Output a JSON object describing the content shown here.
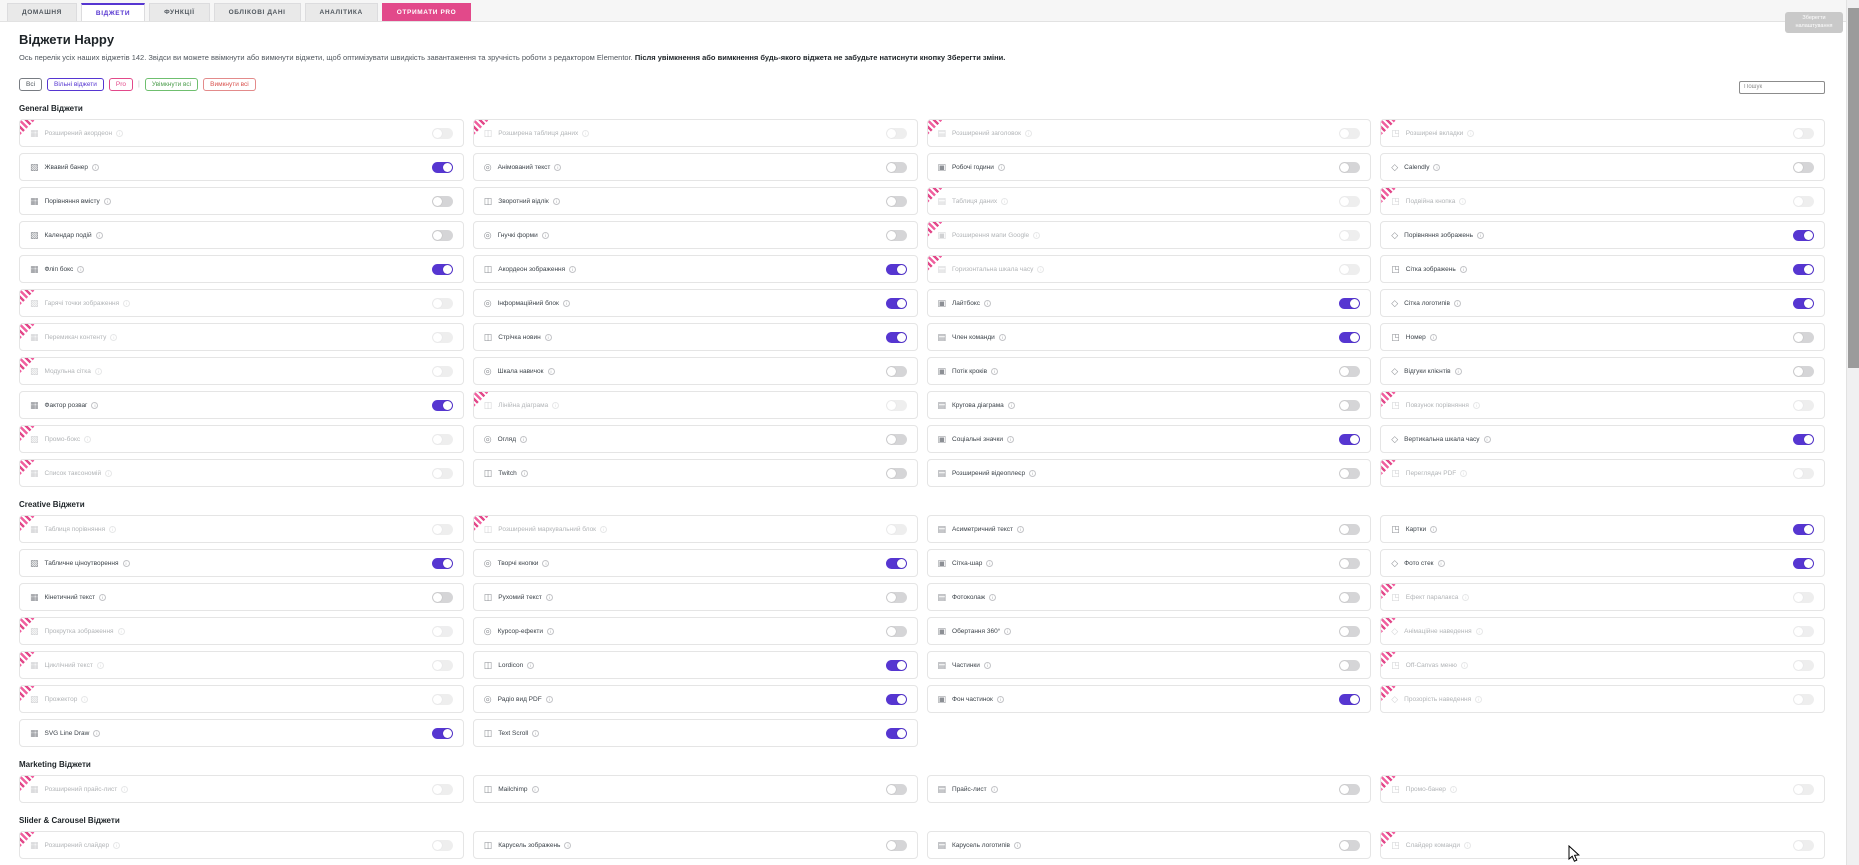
{
  "nav": {
    "tabs": [
      {
        "label": "ДОМАШНЯ",
        "active": false,
        "style": "normal"
      },
      {
        "label": "ВІДЖЕТИ",
        "active": true,
        "style": "normal"
      },
      {
        "label": "ФУНКЦІЇ",
        "active": false,
        "style": "normal"
      },
      {
        "label": "ОБЛІКОВІ ДАНІ",
        "active": false,
        "style": "normal"
      },
      {
        "label": "АНАЛІТИКА",
        "active": false,
        "style": "normal"
      },
      {
        "label": "ОТРИМАТИ PRO",
        "active": false,
        "style": "cta"
      }
    ],
    "save_button": "Зберегти налаштування"
  },
  "header": {
    "title": "Віджети Happy",
    "description_normal": "Ось перелік усіх наших віджетів 142. Звідси ви можете ввімкнути або вимкнути віджети, щоб оптимізувати швидкість завантаження та зручність роботи з редактором Elementor.",
    "description_bold": "Після увімкнення або вимкнення будь-якого віджета не забудьте натиснути кнопку Зберегти зміни."
  },
  "filters": {
    "all": "Всі",
    "free": "Вільні віджети",
    "pro": "Pro",
    "separator": "|",
    "enable_all": "Увімкнути всі",
    "disable_all": "Вимкнути всі",
    "search_placeholder": "Пошук"
  },
  "colors": {
    "accent_purple": "#5636d1",
    "accent_pink": "#e2498a",
    "toggle_off": "#d5d5d7",
    "enable_green": "#4f9e4f",
    "disable_red": "#d9534f"
  },
  "icon_glyphs": [
    "▦",
    "◫",
    "▤",
    "◳",
    "▧",
    "◎",
    "▣",
    "◇"
  ],
  "sections": [
    {
      "title": "General Віджети",
      "widgets": [
        {
          "name": "Розширений акордеон",
          "pro": true,
          "enabled": false
        },
        {
          "name": "Розширена таблиця даних",
          "pro": true,
          "enabled": false
        },
        {
          "name": "Розширений заголовок",
          "pro": true,
          "enabled": false
        },
        {
          "name": "Розширені вкладки",
          "pro": true,
          "enabled": false
        },
        {
          "name": "Жвавий банер",
          "pro": false,
          "enabled": true
        },
        {
          "name": "Анімований текст",
          "pro": false,
          "enabled": false
        },
        {
          "name": "Робочі години",
          "pro": false,
          "enabled": false
        },
        {
          "name": "Calendly",
          "pro": false,
          "enabled": false
        },
        {
          "name": "Порівняння вмісту",
          "pro": false,
          "enabled": false
        },
        {
          "name": "Зворотний відлік",
          "pro": false,
          "enabled": false
        },
        {
          "name": "Таблиця даних",
          "pro": true,
          "enabled": false
        },
        {
          "name": "Подвійна кнопка",
          "pro": true,
          "enabled": false
        },
        {
          "name": "Календар подій",
          "pro": false,
          "enabled": false
        },
        {
          "name": "Гнучкі форми",
          "pro": false,
          "enabled": false
        },
        {
          "name": "Розширення мапи Google",
          "pro": true,
          "enabled": false
        },
        {
          "name": "Порівняння зображень",
          "pro": false,
          "enabled": true
        },
        {
          "name": "Фліп бокс",
          "pro": false,
          "enabled": true
        },
        {
          "name": "Акордеон зображення",
          "pro": false,
          "enabled": true
        },
        {
          "name": "Горизонтальна шкала часу",
          "pro": true,
          "enabled": false
        },
        {
          "name": "Сітка зображень",
          "pro": false,
          "enabled": true
        },
        {
          "name": "Гарячі точки зображення",
          "pro": true,
          "enabled": false
        },
        {
          "name": "Інформаційний блок",
          "pro": false,
          "enabled": true
        },
        {
          "name": "Лайтбокс",
          "pro": false,
          "enabled": true
        },
        {
          "name": "Сітка логотипів",
          "pro": false,
          "enabled": true
        },
        {
          "name": "Перемикач контенту",
          "pro": true,
          "enabled": false
        },
        {
          "name": "Стрічка новин",
          "pro": false,
          "enabled": true
        },
        {
          "name": "Член команди",
          "pro": false,
          "enabled": true
        },
        {
          "name": "Номер",
          "pro": false,
          "enabled": false
        },
        {
          "name": "Модульна сітка",
          "pro": true,
          "enabled": false
        },
        {
          "name": "Шкала навичок",
          "pro": false,
          "enabled": false
        },
        {
          "name": "Потік кроків",
          "pro": false,
          "enabled": false
        },
        {
          "name": "Відгуки клієнтів",
          "pro": false,
          "enabled": false
        },
        {
          "name": "Фактор розваг",
          "pro": false,
          "enabled": true
        },
        {
          "name": "Лінійна діаграма",
          "pro": true,
          "enabled": false
        },
        {
          "name": "Кругова діаграма",
          "pro": false,
          "enabled": false
        },
        {
          "name": "Повзунок порівняння",
          "pro": true,
          "enabled": false
        },
        {
          "name": "Промо-бокс",
          "pro": true,
          "enabled": false
        },
        {
          "name": "Огляд",
          "pro": false,
          "enabled": false
        },
        {
          "name": "Соціальні значки",
          "pro": false,
          "enabled": true
        },
        {
          "name": "Вертикальна шкала часу",
          "pro": false,
          "enabled": true
        },
        {
          "name": "Список таксономій",
          "pro": true,
          "enabled": false
        },
        {
          "name": "Twitch",
          "pro": false,
          "enabled": false
        },
        {
          "name": "Розширений відеоплеєр",
          "pro": false,
          "enabled": false
        },
        {
          "name": "Переглядач PDF",
          "pro": true,
          "enabled": false
        }
      ]
    },
    {
      "title": "Creative Віджети",
      "widgets": [
        {
          "name": "Таблиця порівняння",
          "pro": true,
          "enabled": false
        },
        {
          "name": "Розширений маркувальний блок",
          "pro": true,
          "enabled": false
        },
        {
          "name": "Асиметричний текст",
          "pro": false,
          "enabled": false
        },
        {
          "name": "Картки",
          "pro": false,
          "enabled": true
        },
        {
          "name": "Табличне ціноутворення",
          "pro": false,
          "enabled": true
        },
        {
          "name": "Творчі кнопки",
          "pro": false,
          "enabled": true
        },
        {
          "name": "Сітка-шар",
          "pro": false,
          "enabled": false
        },
        {
          "name": "Фото стек",
          "pro": false,
          "enabled": true
        },
        {
          "name": "Кінетичний текст",
          "pro": false,
          "enabled": false
        },
        {
          "name": "Рухомий текст",
          "pro": false,
          "enabled": false
        },
        {
          "name": "Фотоколаж",
          "pro": false,
          "enabled": false
        },
        {
          "name": "Ефект паралакса",
          "pro": true,
          "enabled": false
        },
        {
          "name": "Прокрутка зображення",
          "pro": true,
          "enabled": false
        },
        {
          "name": "Курсор-ефекти",
          "pro": false,
          "enabled": false
        },
        {
          "name": "Обертання 360°",
          "pro": false,
          "enabled": false
        },
        {
          "name": "Анімаційне наведення",
          "pro": true,
          "enabled": false
        },
        {
          "name": "Циклічний текст",
          "pro": true,
          "enabled": false
        },
        {
          "name": "Lordicon",
          "pro": false,
          "enabled": true
        },
        {
          "name": "Частинки",
          "pro": false,
          "enabled": false
        },
        {
          "name": "Off-Canvas меню",
          "pro": true,
          "enabled": false
        },
        {
          "name": "Прожектор",
          "pro": true,
          "enabled": false
        },
        {
          "name": "Радіо вид PDF",
          "pro": false,
          "enabled": true
        },
        {
          "name": "Фон частинок",
          "pro": false,
          "enabled": true
        },
        {
          "name": "Прозорість наведення",
          "pro": true,
          "enabled": false
        },
        {
          "name": "SVG Line Draw",
          "pro": false,
          "enabled": true
        },
        {
          "name": "Text Scroll",
          "pro": false,
          "enabled": true
        }
      ]
    },
    {
      "title": "Marketing Віджети",
      "widgets": [
        {
          "name": "Розширений прайс-лист",
          "pro": true,
          "enabled": false
        },
        {
          "name": "Mailchimp",
          "pro": false,
          "enabled": false
        },
        {
          "name": "Прайс-лист",
          "pro": false,
          "enabled": false
        },
        {
          "name": "Промо-банер",
          "pro": true,
          "enabled": false
        }
      ]
    },
    {
      "title": "Slider & Carousel Віджети",
      "widgets": [
        {
          "name": "Розширений слайдер",
          "pro": true,
          "enabled": false
        },
        {
          "name": "Карусель зображень",
          "pro": false,
          "enabled": false
        },
        {
          "name": "Карусель логотипів",
          "pro": false,
          "enabled": false
        },
        {
          "name": "Слайдер команди",
          "pro": true,
          "enabled": false
        },
        {
          "name": "",
          "pro": true,
          "enabled": false,
          "clipped": true
        },
        {
          "name": "",
          "pro": false,
          "enabled": false,
          "clipped": true
        },
        {
          "name": "",
          "pro": true,
          "enabled": false,
          "clipped": true
        },
        {
          "name": "",
          "pro": true,
          "enabled": false,
          "clipped": true
        }
      ]
    }
  ]
}
